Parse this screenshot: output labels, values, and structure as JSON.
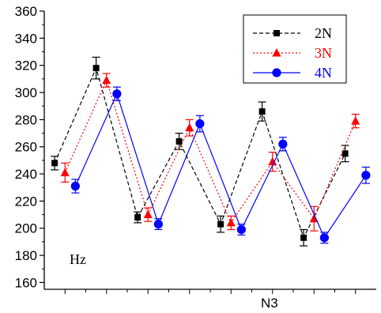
{
  "chart_data": {
    "type": "line",
    "title": "",
    "xlabel": "N3",
    "ylabel": "",
    "annotation": "Hz",
    "ylim": [
      155,
      360
    ],
    "yticks": [
      160,
      180,
      200,
      220,
      240,
      260,
      280,
      300,
      320,
      340,
      360
    ],
    "xlim": [
      0.5,
      8.5
    ],
    "x": [
      1,
      2,
      3,
      4,
      5,
      6,
      7,
      8
    ],
    "grid": false,
    "legend_position": "top-right",
    "series": [
      {
        "name": "2N",
        "color": "#000000",
        "marker": "square",
        "line": "dashed",
        "offset": -0.25,
        "values": [
          248,
          318,
          208,
          264,
          203,
          286,
          193,
          255
        ],
        "errors": [
          5,
          8,
          4,
          6,
          6,
          7,
          6,
          6
        ]
      },
      {
        "name": "3N",
        "color": "#ff0000",
        "marker": "triangle",
        "line": "dotted",
        "offset": 0,
        "values": [
          241,
          309,
          210,
          274,
          204,
          249,
          207,
          279
        ],
        "errors": [
          7,
          5,
          5,
          6,
          5,
          7,
          9,
          5
        ]
      },
      {
        "name": "4N",
        "color": "#0000ff",
        "marker": "circle",
        "line": "solid",
        "offset": 0.25,
        "values": [
          231,
          299,
          203,
          277,
          199,
          262,
          193,
          239
        ],
        "errors": [
          5,
          5,
          4,
          6,
          4,
          5,
          4,
          6
        ]
      }
    ]
  }
}
